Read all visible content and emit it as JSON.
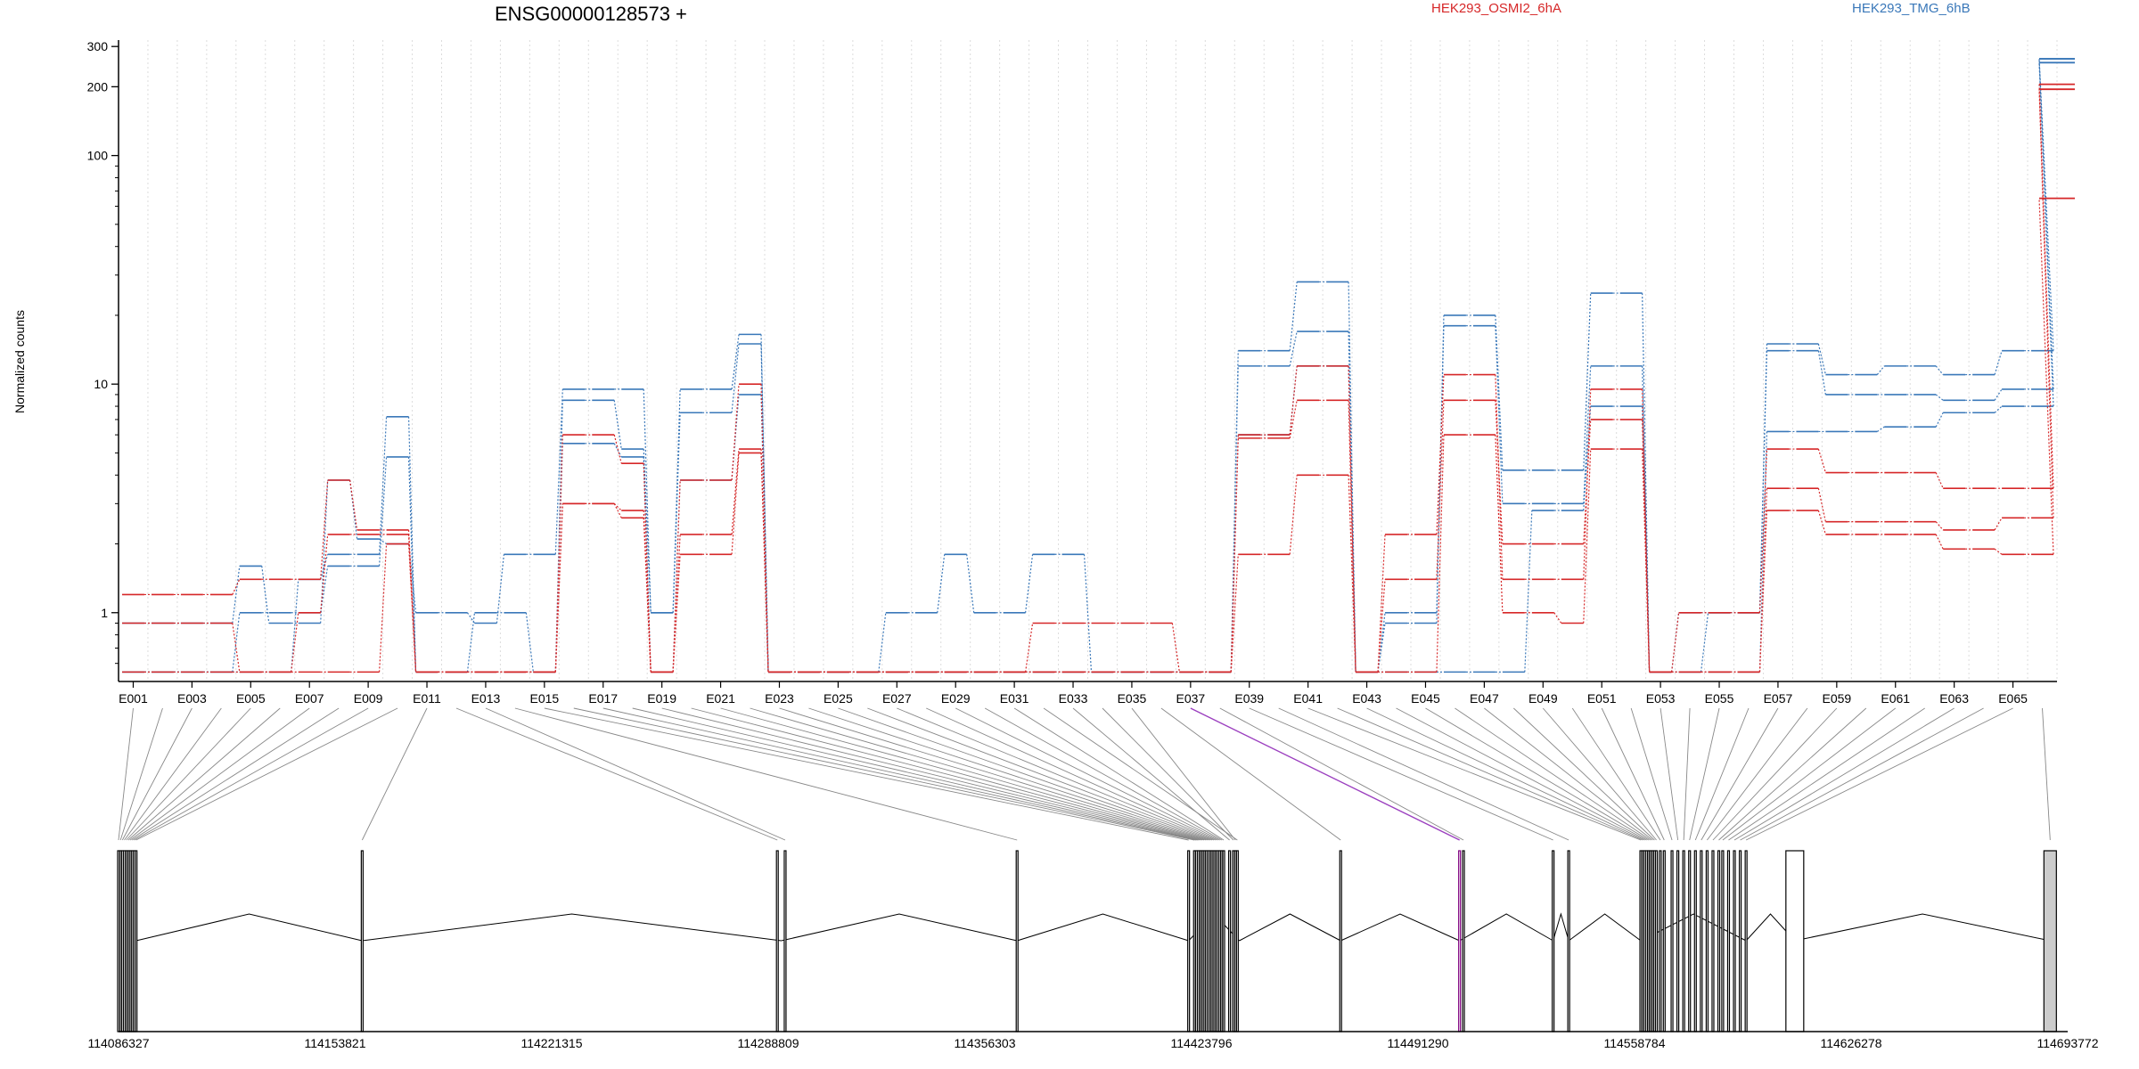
{
  "chart_data": {
    "type": "line",
    "title": "ENSG00000128573 +",
    "ylabel": "Normalized counts",
    "y_scale": "log",
    "ylim": [
      0.5,
      320
    ],
    "y_ticks": [
      {
        "value": 1,
        "label": "1"
      },
      {
        "value": 10,
        "label": "10"
      },
      {
        "value": 100,
        "label": "100"
      },
      {
        "value": 200,
        "label": "200"
      },
      {
        "value": 300,
        "label": "300"
      }
    ],
    "exon_labels": [
      "E001",
      "E003",
      "E005",
      "E007",
      "E009",
      "E011",
      "E013",
      "E015",
      "E017",
      "E019",
      "E021",
      "E023",
      "E025",
      "E027",
      "E029",
      "E031",
      "E033",
      "E035",
      "E037",
      "E039",
      "E041",
      "E043",
      "E045",
      "E047",
      "E049",
      "E051",
      "E053",
      "E055",
      "E057",
      "E059",
      "E061",
      "E063",
      "E065"
    ],
    "legend": [
      {
        "label": "HEK293_OSMI2_6hA",
        "color": "#d62728"
      },
      {
        "label": "HEK293_TMG_6hB",
        "color": "#3a78b9"
      }
    ],
    "genomic_coordinates": [
      "114086327",
      "114153821",
      "114221315",
      "114288809",
      "114356303",
      "114423796",
      "114491290",
      "114558784",
      "114626278",
      "114693772"
    ],
    "series": [
      {
        "group": "HEK293_TMG_6hB",
        "color": "#3a78b9",
        "values": [
          0.9,
          0.9,
          0.9,
          0.9,
          1.6,
          0.9,
          0.9,
          3.8,
          2.1,
          2.0,
          1.0,
          1.0,
          0.9,
          1.8,
          1.8,
          9.5,
          9.5,
          9.5,
          1.0,
          9.5,
          9.5,
          16.5,
          0.55,
          0.55,
          0.55,
          0.55,
          0.55,
          0.55,
          0.55,
          0.55,
          0.55,
          0.55,
          0.55,
          0.55,
          0.55,
          0.55,
          0.55,
          0.55,
          14,
          14,
          28,
          28,
          0.55,
          0.9,
          0.9,
          20,
          20,
          4.2,
          4.2,
          4.2,
          25,
          25,
          0.55,
          1.0,
          1.0,
          1.0,
          15,
          15,
          11,
          11,
          12,
          12,
          11,
          11,
          14,
          14
        ]
      },
      {
        "group": "HEK293_TMG_6hB",
        "color": "#3a78b9",
        "values": [
          0.55,
          0.55,
          0.55,
          0.55,
          0.55,
          0.55,
          1.4,
          1.8,
          1.8,
          7.2,
          0.55,
          0.55,
          1.0,
          1.0,
          0.55,
          8.5,
          8.5,
          5.2,
          1.0,
          7.5,
          7.5,
          15,
          0.55,
          0.55,
          0.55,
          0.55,
          1.0,
          1.0,
          1.8,
          1.0,
          1.0,
          1.8,
          1.8,
          0.55,
          0.55,
          0.55,
          0.55,
          0.55,
          12,
          12,
          17,
          17,
          0.55,
          1.0,
          1.0,
          18,
          18,
          3.0,
          3.0,
          3.0,
          12,
          12,
          0.55,
          0.55,
          1.0,
          1.0,
          14,
          14,
          9,
          9,
          9,
          9,
          8.5,
          8.5,
          9.5,
          9.5
        ]
      },
      {
        "group": "HEK293_TMG_6hB",
        "color": "#3a78b9",
        "values": [
          0.55,
          0.55,
          0.55,
          0.55,
          1.0,
          1.0,
          1.0,
          1.6,
          1.6,
          4.8,
          0.55,
          0.55,
          0.55,
          0.55,
          0.55,
          5.5,
          5.5,
          4.8,
          0.55,
          3.8,
          3.8,
          9,
          0.55,
          0.55,
          0.55,
          0.55,
          0.55,
          0.55,
          0.55,
          0.55,
          0.55,
          0.55,
          0.55,
          0.55,
          0.55,
          0.55,
          0.55,
          0.55,
          6,
          6,
          12,
          12,
          0.55,
          0.55,
          0.55,
          0.55,
          0.55,
          0.55,
          2.8,
          2.8,
          8.0,
          8.0,
          0.55,
          0.55,
          0.55,
          0.55,
          6.2,
          6.2,
          6.2,
          6.2,
          6.5,
          6.5,
          7.5,
          7.5,
          8.0,
          8.0
        ]
      },
      {
        "group": "HEK293_OSMI2_6hA",
        "color": "#d62728",
        "values": [
          1.2,
          1.2,
          1.2,
          1.2,
          1.4,
          1.4,
          1.4,
          3.8,
          2.3,
          2.3,
          0.55,
          0.55,
          0.55,
          0.55,
          0.55,
          6.0,
          6.0,
          4.5,
          0.55,
          3.8,
          3.8,
          10,
          0.55,
          0.55,
          0.55,
          0.55,
          0.55,
          0.55,
          0.55,
          0.55,
          0.55,
          0.55,
          0.55,
          0.55,
          0.55,
          0.55,
          0.55,
          0.55,
          6,
          6,
          12,
          12,
          0.55,
          2.2,
          2.2,
          11,
          11,
          1.4,
          1.4,
          1.4,
          9.5,
          9.5,
          0.55,
          1.0,
          1.0,
          1.0,
          5.2,
          5.2,
          4.1,
          4.1,
          4.1,
          4.1,
          3.5,
          3.5,
          3.5,
          3.5
        ]
      },
      {
        "group": "HEK293_OSMI2_6hA",
        "color": "#d62728",
        "values": [
          0.9,
          0.9,
          0.9,
          0.9,
          0.55,
          0.55,
          1.0,
          2.2,
          2.2,
          2.2,
          0.55,
          0.55,
          0.55,
          0.55,
          0.55,
          3.0,
          3.0,
          2.8,
          0.55,
          2.2,
          2.2,
          5.2,
          0.55,
          0.55,
          0.55,
          0.55,
          0.55,
          0.55,
          0.55,
          0.55,
          0.55,
          0.55,
          0.55,
          0.55,
          0.55,
          0.55,
          0.55,
          0.55,
          5.8,
          5.8,
          8.5,
          8.5,
          0.55,
          1.4,
          1.4,
          8.5,
          8.5,
          2.0,
          2.0,
          2.0,
          7.0,
          7.0,
          0.55,
          0.55,
          0.55,
          0.55,
          3.5,
          3.5,
          2.5,
          2.5,
          2.5,
          2.5,
          2.3,
          2.3,
          2.6,
          2.6
        ]
      },
      {
        "group": "HEK293_OSMI2_6hA",
        "color": "#d62728",
        "values": [
          0.55,
          0.55,
          0.55,
          0.55,
          0.55,
          0.55,
          0.55,
          0.55,
          0.55,
          2.0,
          0.55,
          0.55,
          0.55,
          0.55,
          0.55,
          3.0,
          3.0,
          2.6,
          0.55,
          1.8,
          1.8,
          5.0,
          0.55,
          0.55,
          0.55,
          0.55,
          0.55,
          0.55,
          0.55,
          0.55,
          0.55,
          0.9,
          0.9,
          0.9,
          0.9,
          0.9,
          0.55,
          0.55,
          1.8,
          1.8,
          4.0,
          4.0,
          0.55,
          0.55,
          0.55,
          6.0,
          6.0,
          1.0,
          1.0,
          0.9,
          5.2,
          5.2,
          0.55,
          0.55,
          0.55,
          0.55,
          2.8,
          2.8,
          2.2,
          2.2,
          2.2,
          2.2,
          1.9,
          1.9,
          1.8,
          1.8
        ]
      }
    ],
    "last_exon_values": {
      "blue": [
        265,
        255
      ],
      "red": [
        205,
        195,
        65
      ]
    },
    "grid": "vertical-dotted",
    "legend_position": "top-right"
  }
}
